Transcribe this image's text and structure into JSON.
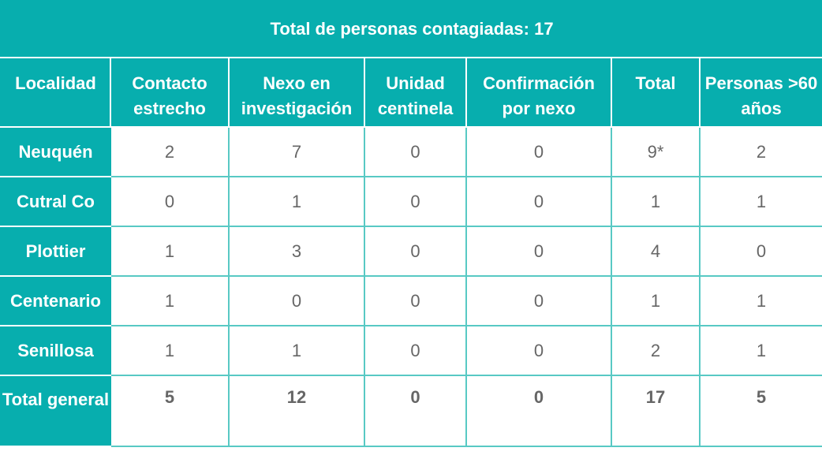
{
  "title": "Total de personas contagiadas: 17",
  "columns": [
    "Localidad",
    "Contacto estrecho",
    "Nexo en investigación",
    "Unidad centinela",
    "Confirmación por nexo",
    "Total",
    "Personas >60 años"
  ],
  "rows": [
    {
      "localidad": "Neuquén",
      "values": [
        "2",
        "7",
        "0",
        "0",
        "9*",
        "2"
      ]
    },
    {
      "localidad": "Cutral Co",
      "values": [
        "0",
        "1",
        "0",
        "0",
        "1",
        "1"
      ]
    },
    {
      "localidad": "Plottier",
      "values": [
        "1",
        "3",
        "0",
        "0",
        "4",
        "0"
      ]
    },
    {
      "localidad": "Centenario",
      "values": [
        "1",
        "0",
        "0",
        "0",
        "1",
        "1"
      ]
    },
    {
      "localidad": "Senillosa",
      "values": [
        "1",
        "1",
        "0",
        "0",
        "2",
        "1"
      ]
    }
  ],
  "total": {
    "label": "Total general",
    "values": [
      "5",
      "12",
      "0",
      "0",
      "17",
      "5"
    ]
  },
  "colors": {
    "header_bg": "#07aeae",
    "border": "#58c9c4",
    "value_text": "#666666"
  }
}
